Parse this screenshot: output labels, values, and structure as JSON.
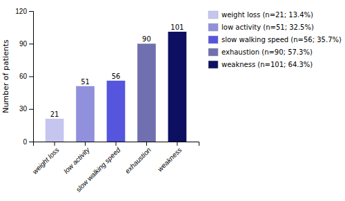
{
  "chart_data": {
    "type": "bar",
    "categories": [
      "weight loss",
      "low activity",
      "slow walking speed",
      "exhaustion",
      "weakness"
    ],
    "values": [
      21,
      51,
      56,
      90,
      101
    ],
    "colors": [
      "#c5c5f0",
      "#9090dc",
      "#5555dd",
      "#7070b0",
      "#0d1060"
    ],
    "ylabel": "Number of patients",
    "ylim": [
      0,
      120
    ],
    "yticks": [
      0,
      30,
      60,
      90,
      120
    ],
    "data_labels": true,
    "grid": false,
    "legend": "right",
    "legend_labels": [
      "weight loss (n=21; 13.4%)",
      "low activity (n=51; 32.5%)",
      "slow walking speed (n=56; 35.7%)",
      "exhaustion (n=90; 57.3%)",
      "weakness (n=101; 64.3%)"
    ]
  }
}
